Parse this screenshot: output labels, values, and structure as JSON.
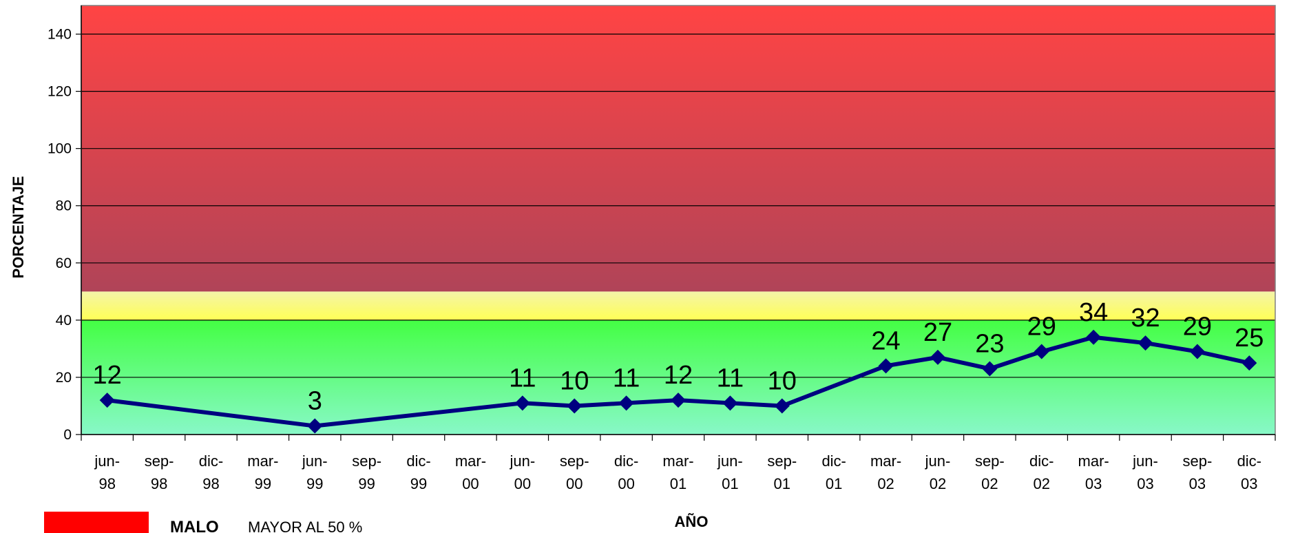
{
  "chart_data": {
    "type": "line",
    "xlabel": "AÑO",
    "ylabel": "PORCENTAJE",
    "ylim": [
      0,
      150
    ],
    "yticks": [
      0,
      20,
      40,
      60,
      80,
      100,
      120,
      140
    ],
    "grid": true,
    "categories": [
      [
        "jun-",
        "98"
      ],
      [
        "sep-",
        "98"
      ],
      [
        "dic-",
        "98"
      ],
      [
        "mar-",
        "99"
      ],
      [
        "jun-",
        "99"
      ],
      [
        "sep-",
        "99"
      ],
      [
        "dic-",
        "99"
      ],
      [
        "mar-",
        "00"
      ],
      [
        "jun-",
        "00"
      ],
      [
        "sep-",
        "00"
      ],
      [
        "dic-",
        "00"
      ],
      [
        "mar-",
        "01"
      ],
      [
        "jun-",
        "01"
      ],
      [
        "sep-",
        "01"
      ],
      [
        "dic-",
        "01"
      ],
      [
        "mar-",
        "02"
      ],
      [
        "jun-",
        "02"
      ],
      [
        "sep-",
        "02"
      ],
      [
        "dic-",
        "02"
      ],
      [
        "mar-",
        "03"
      ],
      [
        "jun-",
        "03"
      ],
      [
        "sep-",
        "03"
      ],
      [
        "dic-",
        "03"
      ]
    ],
    "series": [
      {
        "color": "#000080",
        "marker": "diamond",
        "values": [
          12,
          null,
          null,
          null,
          3,
          null,
          null,
          null,
          11,
          10,
          11,
          12,
          11,
          10,
          null,
          24,
          27,
          23,
          29,
          34,
          32,
          29,
          25
        ]
      }
    ],
    "bands": [
      {
        "from": 0,
        "to": 40,
        "color_top": "#44ff44",
        "color_bottom": "#88f8c8"
      },
      {
        "from": 40,
        "to": 50,
        "color_top": "#ffff55",
        "color_bottom": "#f4f4a8"
      },
      {
        "from": 50,
        "to": 150,
        "color_top": "#ff4444",
        "color_bottom": "#b04458"
      }
    ],
    "legend": {
      "color": "#ff0000",
      "label": "MALO",
      "text": "MAYOR AL 50 %"
    }
  }
}
